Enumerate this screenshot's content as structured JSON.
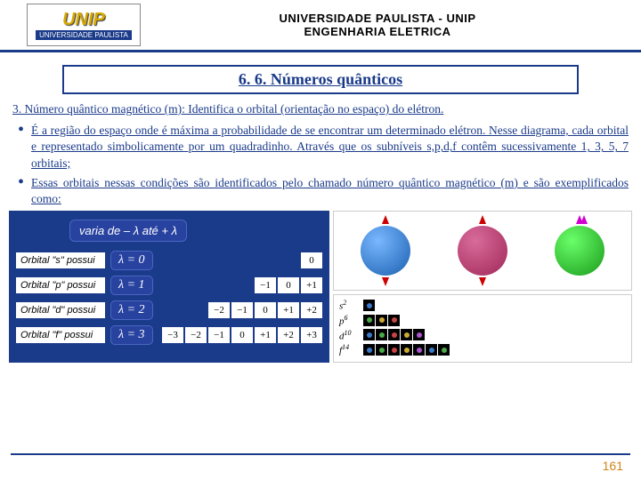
{
  "header": {
    "logo_top": "UNIP",
    "logo_bottom": "UNIVERSIDADE PAULISTA",
    "line1": "UNIVERSIDADE PAULISTA - UNIP",
    "line2": "ENGENHARIA  ELETRICA"
  },
  "title": "6. 6. Números quânticos",
  "para1": "3. Número quântico magnético (m): Identifica o orbital (orientação no espaço) do elétron.",
  "bul1": "É a região do espaço onde é máxima a probabilidade de se encontrar um determinado elétron. Nesse diagrama, cada orbital e representado simbolicamente por um quadradinho. Através que os subníveis s,p,d,f contêm sucessivamente 1, 3, 5, 7 orbitais;",
  "bul2": "Essas orbitais nessas condições são identificados pelo chamado número quântico magnético (m) e são exemplificados como:",
  "varia": "varia de – λ  até + λ",
  "orbitals": [
    {
      "label": "Orbital \"s\" possui",
      "lambda": "λ = 0",
      "nums": [
        "0"
      ]
    },
    {
      "label": "Orbital \"p\" possui",
      "lambda": "λ = 1",
      "nums": [
        "−1",
        "0",
        "+1"
      ]
    },
    {
      "label": "Orbital \"d\" possui",
      "lambda": "λ = 2",
      "nums": [
        "−2",
        "−1",
        "0",
        "+1",
        "+2"
      ]
    },
    {
      "label": "Orbital \"f\" possui",
      "lambda": "λ = 3",
      "nums": [
        "−3",
        "−2",
        "−1",
        "0",
        "+1",
        "+2",
        "+3"
      ]
    }
  ],
  "shells": [
    {
      "sym": "s",
      "sup": "2",
      "boxes": [
        [
          "c-blue"
        ]
      ]
    },
    {
      "sym": "p",
      "sup": "6",
      "boxes": [
        [
          "c-green"
        ],
        [
          "c-yel"
        ],
        [
          "c-red"
        ]
      ]
    },
    {
      "sym": "d",
      "sup": "10",
      "boxes": [
        [
          "c-blue"
        ],
        [
          "c-green"
        ],
        [
          "c-red"
        ],
        [
          "c-yel"
        ],
        [
          "c-pur"
        ]
      ]
    },
    {
      "sym": "f",
      "sup": "14",
      "boxes": [
        [
          "c-blue"
        ],
        [
          "c-green"
        ],
        [
          "c-red"
        ],
        [
          "c-yel"
        ],
        [
          "c-pur"
        ],
        [
          "c-blue"
        ],
        [
          "c-green"
        ]
      ]
    }
  ],
  "page": "161"
}
